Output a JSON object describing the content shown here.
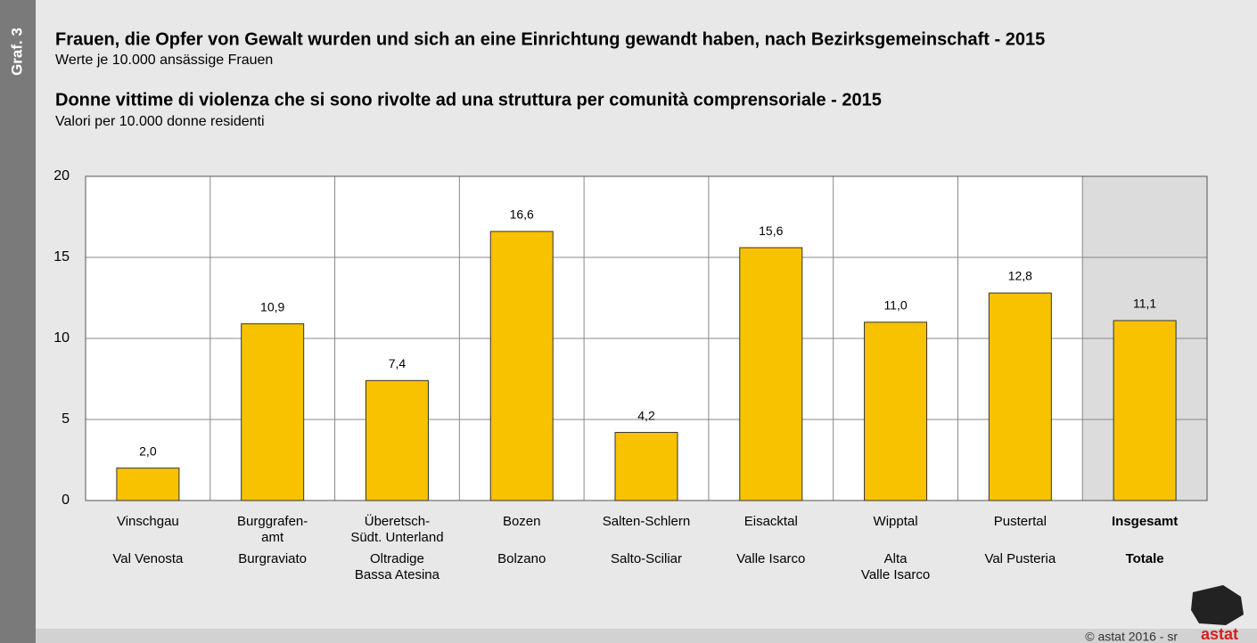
{
  "chart_data": {
    "type": "bar",
    "side_label": "Graf. 3",
    "title": "Frauen, die Opfer von Gewalt wurden und sich an eine Einrichtung gewandt haben, nach Bezirksgemeinschaft - 2015",
    "subtitle": "Werte je 10.000 ansässige Frauen",
    "title_it": "Donne vittime di violenza che si sono rivolte ad una struttura per comunità comprensoriale - 2015",
    "subtitle_it": "Valori per 10.000 donne residenti",
    "categories": [
      {
        "de": [
          "Vinschgau"
        ],
        "it": [
          "Val Venosta"
        ]
      },
      {
        "de": [
          "Burggrafen-",
          "amt"
        ],
        "it": [
          "Burgraviato"
        ]
      },
      {
        "de": [
          "Überetsch-",
          "Südt. Unterland"
        ],
        "it": [
          "Oltradige",
          "Bassa Atesina"
        ]
      },
      {
        "de": [
          "Bozen"
        ],
        "it": [
          "Bolzano"
        ]
      },
      {
        "de": [
          "Salten-Schlern"
        ],
        "it": [
          "Salto-Sciliar"
        ]
      },
      {
        "de": [
          "Eisacktal"
        ],
        "it": [
          "Valle Isarco"
        ]
      },
      {
        "de": [
          "Wipptal"
        ],
        "it": [
          "Alta",
          "Valle Isarco"
        ]
      },
      {
        "de": [
          "Pustertal"
        ],
        "it": [
          "Val Pusteria"
        ]
      },
      {
        "de": [
          "Insgesamt"
        ],
        "it": [
          "Totale"
        ]
      }
    ],
    "values": [
      2.0,
      10.9,
      7.4,
      16.6,
      4.2,
      15.6,
      11.0,
      12.8,
      11.1
    ],
    "value_labels": [
      "2,0",
      "10,9",
      "7,4",
      "16,6",
      "4,2",
      "15,6",
      "11,0",
      "12,8",
      "11,1"
    ],
    "color": "#f8c200",
    "highlighted_category": 8,
    "ylim": [
      0,
      20
    ],
    "yticks": [
      0,
      5,
      10,
      15,
      20
    ],
    "grid": true,
    "footer": "© astat 2016 - sr",
    "logo": "astat"
  }
}
